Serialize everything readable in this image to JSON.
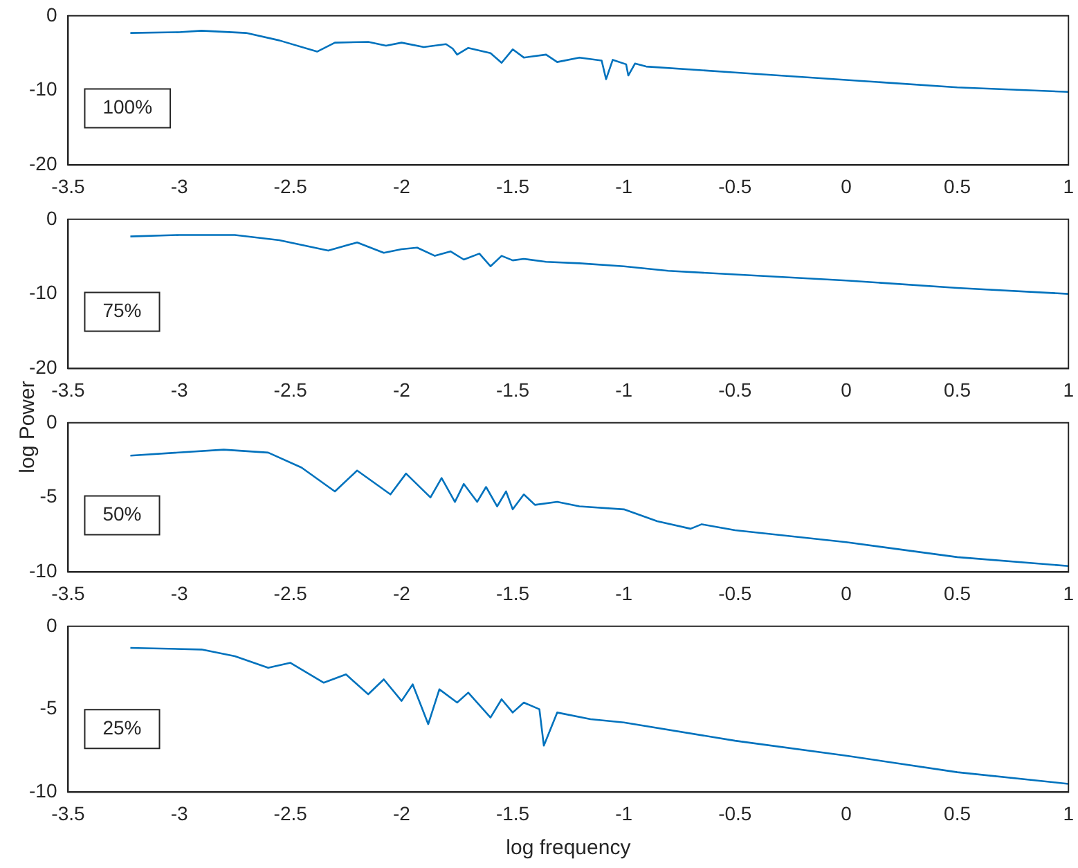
{
  "chart_data": [
    {
      "type": "line",
      "x": [
        -3.22,
        -3.0,
        -2.9,
        -2.7,
        -2.55,
        -2.38,
        -2.3,
        -2.15,
        -2.07,
        -2.0,
        -1.9,
        -1.8,
        -1.77,
        -1.75,
        -1.7,
        -1.6,
        -1.55,
        -1.5,
        -1.45,
        -1.35,
        -1.3,
        -1.2,
        -1.1,
        -1.08,
        -1.05,
        -0.99,
        -0.98,
        -0.95,
        -0.9,
        -0.5,
        0,
        0.5,
        1
      ],
      "values": [
        -2.3,
        -2.2,
        -2.0,
        -2.3,
        -3.3,
        -4.8,
        -3.6,
        -3.5,
        -4.0,
        -3.6,
        -4.2,
        -3.8,
        -4.4,
        -5.2,
        -4.3,
        -5.0,
        -6.3,
        -4.5,
        -5.6,
        -5.2,
        -6.2,
        -5.6,
        -6.0,
        -8.5,
        -5.9,
        -6.5,
        -8.0,
        -6.4,
        -6.8,
        -7.6,
        -8.6,
        -9.6,
        -10.2
      ],
      "color": "#0072bd",
      "xlim": [
        -3.5,
        1
      ],
      "xticks": [
        -3.5,
        -3,
        -2.5,
        -2,
        -1.5,
        -1,
        -0.5,
        0,
        0.5,
        1
      ],
      "ylim": [
        -20,
        0
      ],
      "yticks": [
        -20,
        -10,
        0
      ],
      "annotations": [
        "100%"
      ],
      "marker": "none"
    },
    {
      "type": "line",
      "x": [
        -3.22,
        -3.0,
        -2.75,
        -2.55,
        -2.33,
        -2.2,
        -2.08,
        -2.0,
        -1.93,
        -1.85,
        -1.78,
        -1.72,
        -1.65,
        -1.6,
        -1.55,
        -1.5,
        -1.45,
        -1.35,
        -1.2,
        -1.0,
        -0.8,
        -0.5,
        0,
        0.5,
        1
      ],
      "values": [
        -2.3,
        -2.1,
        -2.1,
        -2.8,
        -4.2,
        -3.1,
        -4.5,
        -4.0,
        -3.8,
        -4.9,
        -4.3,
        -5.4,
        -4.6,
        -6.3,
        -4.9,
        -5.5,
        -5.3,
        -5.7,
        -5.9,
        -6.3,
        -6.9,
        -7.4,
        -8.2,
        -9.2,
        -10.0
      ],
      "color": "#0072bd",
      "xlim": [
        -3.5,
        1
      ],
      "xticks": [
        -3.5,
        -3,
        -2.5,
        -2,
        -1.5,
        -1,
        -0.5,
        0,
        0.5,
        1
      ],
      "ylim": [
        -20,
        0
      ],
      "yticks": [
        -20,
        -10,
        0
      ],
      "ylabel": "log Power",
      "annotations": [
        "75%"
      ],
      "marker": "none"
    },
    {
      "type": "line",
      "x": [
        -3.22,
        -2.8,
        -2.6,
        -2.45,
        -2.3,
        -2.2,
        -2.05,
        -1.98,
        -1.87,
        -1.82,
        -1.76,
        -1.72,
        -1.66,
        -1.62,
        -1.57,
        -1.53,
        -1.5,
        -1.45,
        -1.4,
        -1.3,
        -1.2,
        -1.0,
        -0.85,
        -0.7,
        -0.65,
        -0.5,
        0,
        0.5,
        1
      ],
      "values": [
        -2.2,
        -1.8,
        -2.0,
        -3.0,
        -4.6,
        -3.2,
        -4.8,
        -3.4,
        -5.0,
        -3.7,
        -5.3,
        -4.1,
        -5.3,
        -4.3,
        -5.6,
        -4.6,
        -5.8,
        -4.8,
        -5.5,
        -5.3,
        -5.6,
        -5.8,
        -6.6,
        -7.1,
        -6.8,
        -7.2,
        -8.0,
        -9.0,
        -9.6
      ],
      "color": "#0072bd",
      "xlim": [
        -3.5,
        1
      ],
      "xticks": [
        -3.5,
        -3,
        -2.5,
        -2,
        -1.5,
        -1,
        -0.5,
        0,
        0.5,
        1
      ],
      "ylim": [
        -10,
        0
      ],
      "yticks": [
        -10,
        -5,
        0
      ],
      "annotations": [
        "50%"
      ],
      "marker": "none"
    },
    {
      "type": "line",
      "x": [
        -3.22,
        -2.9,
        -2.75,
        -2.6,
        -2.5,
        -2.35,
        -2.25,
        -2.15,
        -2.08,
        -2.0,
        -1.95,
        -1.88,
        -1.83,
        -1.75,
        -1.7,
        -1.6,
        -1.55,
        -1.5,
        -1.45,
        -1.38,
        -1.36,
        -1.3,
        -1.15,
        -1.0,
        -0.5,
        0,
        0.5,
        1
      ],
      "values": [
        -1.3,
        -1.4,
        -1.8,
        -2.5,
        -2.2,
        -3.4,
        -2.9,
        -4.1,
        -3.2,
        -4.5,
        -3.5,
        -5.9,
        -3.8,
        -4.6,
        -4.0,
        -5.5,
        -4.4,
        -5.2,
        -4.6,
        -5.0,
        -7.2,
        -5.2,
        -5.6,
        -5.8,
        -6.9,
        -7.8,
        -8.8,
        -9.5
      ],
      "color": "#0072bd",
      "xlim": [
        -3.5,
        1
      ],
      "xticks": [
        -3.5,
        -3,
        -2.5,
        -2,
        -1.5,
        -1,
        -0.5,
        0,
        0.5,
        1
      ],
      "ylim": [
        -10,
        0
      ],
      "yticks": [
        -10,
        -5,
        0
      ],
      "xlabel": "log frequency",
      "annotations": [
        "25%"
      ],
      "marker": "none"
    }
  ]
}
